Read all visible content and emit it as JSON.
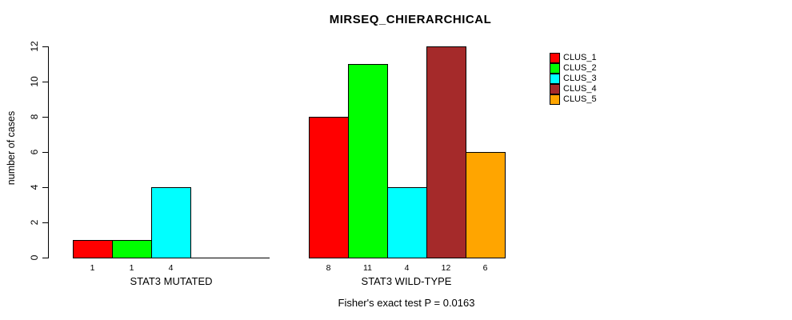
{
  "title": "MIRSEQ_CHIERARCHICAL",
  "subtitle": "Fisher's exact test P = 0.0163",
  "y_axis": {
    "label": "number of cases"
  },
  "legend": {
    "items": [
      {
        "label": "CLUS_1",
        "color": "#FF0000"
      },
      {
        "label": "CLUS_2",
        "color": "#00FF00"
      },
      {
        "label": "CLUS_3",
        "color": "#00FFFF"
      },
      {
        "label": "CLUS_4",
        "color": "#A52A2A"
      },
      {
        "label": "CLUS_5",
        "color": "#FFA500"
      }
    ]
  },
  "chart_data": {
    "type": "bar",
    "title": "MIRSEQ_CHIERARCHICAL",
    "ylabel": "number of cases",
    "ylim": [
      0,
      12
    ],
    "yticks": [
      0,
      2,
      4,
      6,
      8,
      10,
      12
    ],
    "grid": false,
    "legend_position": "right",
    "categories": [
      "CLUS_1",
      "CLUS_2",
      "CLUS_3",
      "CLUS_4",
      "CLUS_5"
    ],
    "series_colors": [
      "#FF0000",
      "#00FF00",
      "#00FFFF",
      "#A52A2A",
      "#FFA500"
    ],
    "groups": [
      {
        "label": "STAT3 MUTATED",
        "values": [
          1,
          1,
          4,
          0,
          0
        ],
        "bar_labels": [
          "1",
          "1",
          "4",
          "",
          ""
        ]
      },
      {
        "label": "STAT3 WILD-TYPE",
        "values": [
          8,
          11,
          4,
          12,
          6
        ],
        "bar_labels": [
          "8",
          "11",
          "4",
          "12",
          "6"
        ]
      }
    ],
    "annotation": "Fisher's exact test P = 0.0163"
  }
}
